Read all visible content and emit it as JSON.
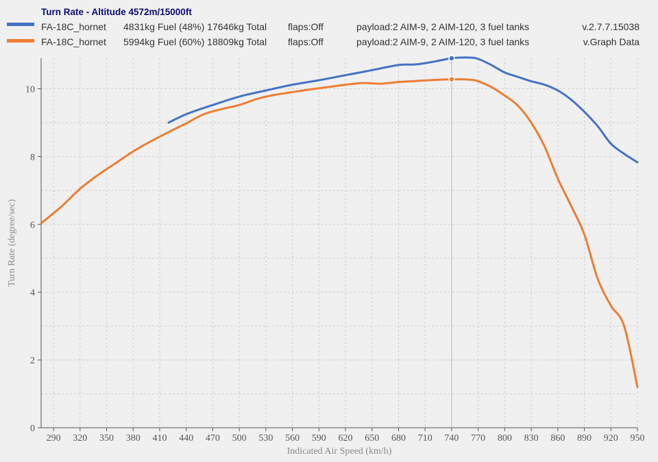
{
  "legend": {
    "title": "Turn Rate - Altitude 4572m/15000ft",
    "entries": [
      {
        "color": "#4472c4",
        "aircraft": "FA-18C_hornet",
        "fuel": "4831kg Fuel (48%) 17646kg Total",
        "flaps": "flaps:Off",
        "payload": "payload:2 AIM-9, 2 AIM-120, 3 fuel tanks",
        "version": "v.2.7.7.15038"
      },
      {
        "color": "#ed7d31",
        "aircraft": "FA-18C_hornet",
        "fuel": "5994kg Fuel (60%) 18809kg Total",
        "flaps": "flaps:Off",
        "payload": "payload:2 AIM-9, 2 AIM-120, 3 fuel tanks",
        "version": "v.Graph Data"
      }
    ]
  },
  "chart_data": {
    "type": "line",
    "title": "Turn Rate - Altitude 4572m/15000ft",
    "xlabel": "Indicated Air Speed (km/h)",
    "ylabel": "Turn Rate (degree/sec)",
    "xlim": [
      276,
      950
    ],
    "ylim": [
      0,
      10.9
    ],
    "xticks": [
      290,
      320,
      350,
      380,
      410,
      440,
      470,
      500,
      530,
      560,
      590,
      620,
      650,
      680,
      710,
      740,
      770,
      800,
      830,
      860,
      890,
      920,
      950
    ],
    "yticks": [
      0,
      2,
      4,
      6,
      8,
      10
    ],
    "grid": true,
    "cursor_x": 740,
    "series": [
      {
        "name": "FA-18C_hornet 4831kg Fuel (48%) 17646kg Total",
        "color": "#4472c4",
        "x": [
          420,
          440,
          470,
          500,
          530,
          560,
          590,
          620,
          650,
          680,
          700,
          720,
          740,
          760,
          770,
          785,
          800,
          815,
          830,
          845,
          860,
          875,
          890,
          905,
          920,
          935,
          950
        ],
        "y": [
          9.0,
          9.25,
          9.52,
          9.77,
          9.95,
          10.12,
          10.25,
          10.4,
          10.55,
          10.7,
          10.72,
          10.8,
          10.9,
          10.92,
          10.88,
          10.7,
          10.48,
          10.35,
          10.22,
          10.12,
          9.95,
          9.68,
          9.32,
          8.9,
          8.38,
          8.08,
          7.83
        ]
      },
      {
        "name": "FA-18C_hornet 5994kg Fuel (60%) 18809kg Total",
        "color": "#ed7d31",
        "x": [
          276,
          300,
          320,
          340,
          360,
          380,
          400,
          420,
          440,
          460,
          480,
          500,
          520,
          540,
          560,
          580,
          600,
          620,
          640,
          660,
          680,
          700,
          720,
          740,
          760,
          770,
          785,
          800,
          815,
          830,
          845,
          860,
          875,
          890,
          905,
          920,
          935,
          950
        ],
        "y": [
          6.03,
          6.55,
          7.05,
          7.45,
          7.8,
          8.15,
          8.45,
          8.72,
          8.98,
          9.25,
          9.4,
          9.52,
          9.7,
          9.82,
          9.9,
          9.98,
          10.05,
          10.12,
          10.17,
          10.15,
          10.2,
          10.23,
          10.26,
          10.28,
          10.27,
          10.22,
          10.05,
          9.8,
          9.5,
          9.0,
          8.3,
          7.35,
          6.55,
          5.7,
          4.4,
          3.6,
          3.0,
          1.2
        ]
      }
    ]
  }
}
